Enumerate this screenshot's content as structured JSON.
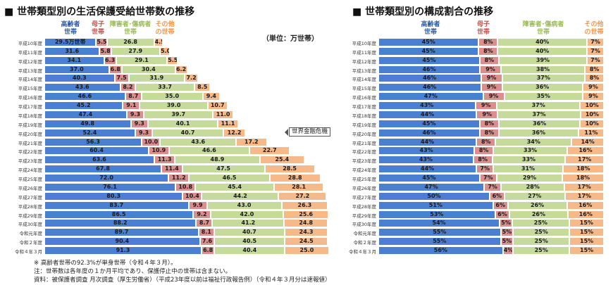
{
  "colors": {
    "elderly": "#4a7fd1",
    "single_mother": "#d98f8d",
    "disabled": "#c6da9c",
    "other": "#f6b98a",
    "elderly_text": "#2d5aa0",
    "mother_text": "#c0504d",
    "disabled_text": "#9bbb59",
    "other_text": "#f79646"
  },
  "chart_data": [
    {
      "type": "bar",
      "orientation": "horizontal",
      "stacked": true,
      "title": "■ 世帯類型別の生活保護受給世帯数の推移",
      "unit_label": "（単位：万世帯）",
      "categories": [
        "平成10年度",
        "平成11年度",
        "平成12年度",
        "平成13年度",
        "平成14年度",
        "平成15年度",
        "平成16年度",
        "平成17年度",
        "平成18年度",
        "平成19年度",
        "平成20年度",
        "平成21年度",
        "平成22年度",
        "平成23年度",
        "平成24年度",
        "平成25年度",
        "平成26年度",
        "平成27年度",
        "平成28年度",
        "平成29年度",
        "平成30年度",
        "令和元年度",
        "令和２年度",
        "令和４年３月"
      ],
      "first_label_suffix": "万世帯",
      "annotation": "世界金融危機",
      "series": [
        {
          "name": "高齢者\n世帯",
          "values": [
            29.5,
            31.6,
            34.1,
            37.0,
            40.3,
            43.6,
            46.6,
            45.2,
            47.4,
            49.8,
            52.4,
            56.3,
            60.4,
            63.6,
            67.8,
            72.0,
            76.1,
            80.3,
            83.7,
            86.5,
            88.2,
            89.7,
            90.4,
            91.3
          ]
        },
        {
          "name": "母子\n世帯",
          "values": [
            5.5,
            5.8,
            6.3,
            6.8,
            7.5,
            8.2,
            8.7,
            9.1,
            9.3,
            9.3,
            9.3,
            10.0,
            10.9,
            11.3,
            11.4,
            11.2,
            10.8,
            10.4,
            9.9,
            9.2,
            8.7,
            8.1,
            7.6,
            6.8
          ]
        },
        {
          "name": "障害者･傷病者\n世帯",
          "values": [
            26.8,
            27.9,
            29.1,
            30.4,
            31.9,
            33.7,
            35.0,
            39.0,
            39.7,
            40.1,
            40.7,
            43.6,
            46.6,
            48.9,
            47.5,
            46.5,
            45.4,
            44.2,
            43.0,
            42.0,
            41.2,
            40.7,
            40.5,
            40.4
          ]
        },
        {
          "name": "その他\nの世帯",
          "values": [
            4.5,
            5.0,
            5.5,
            6.2,
            7.2,
            8.5,
            9.4,
            10.7,
            11.0,
            11.1,
            12.2,
            17.2,
            22.7,
            25.4,
            28.5,
            28.8,
            28.1,
            27.2,
            26.3,
            25.6,
            24.8,
            24.3,
            24.5,
            25.0
          ]
        }
      ]
    },
    {
      "type": "bar",
      "orientation": "horizontal",
      "stacked": true,
      "percent": true,
      "title": "■ 世帯類型別の構成割合の推移",
      "categories": [
        "平成10年度",
        "平成11年度",
        "平成12年度",
        "平成13年度",
        "平成14年度",
        "平成15年度",
        "平成16年度",
        "平成17年度",
        "平成18年度",
        "平成19年度",
        "平成20年度",
        "平成21年度",
        "平成22年度",
        "平成23年度",
        "平成24年度",
        "平成25年度",
        "平成26年度",
        "平成27年度",
        "平成28年度",
        "平成29年度",
        "平成30年度",
        "令和元年度",
        "令和２年度",
        "令和４年３月"
      ],
      "series": [
        {
          "name": "高齢者\n世帯",
          "values": [
            45,
            45,
            45,
            46,
            46,
            46,
            47,
            43,
            44,
            45,
            46,
            44,
            43,
            43,
            44,
            45,
            47,
            50,
            51,
            53,
            54,
            55,
            55,
            56
          ]
        },
        {
          "name": "母子\n世帯",
          "values": [
            8,
            8,
            8,
            9,
            9,
            9,
            9,
            9,
            9,
            8,
            8,
            8,
            8,
            8,
            7,
            7,
            7,
            6,
            6,
            6,
            5,
            5,
            5,
            4
          ]
        },
        {
          "name": "障害者･傷病者\n世帯",
          "values": [
            40,
            40,
            39,
            38,
            37,
            36,
            35,
            37,
            37,
            36,
            36,
            34,
            33,
            33,
            31,
            29,
            28,
            27,
            26,
            26,
            25,
            25,
            25,
            25
          ]
        },
        {
          "name": "その他\nの世帯",
          "values": [
            7,
            7,
            7,
            8,
            8,
            9,
            9,
            10,
            10,
            10,
            11,
            14,
            16,
            17,
            18,
            18,
            17,
            17,
            16,
            16,
            15,
            15,
            15,
            15
          ]
        }
      ]
    }
  ],
  "notes": [
    "※ 高齢者世帯の92.3%が単身世帯（令和４年３月）。",
    "注：世帯数は各年度の１か月平均であり、保護停止中の世帯は含まない。",
    "資料：被保護者調査 月次調査（厚生労働省）（平成23年度以前は福祉行政報告例）（令和４年３月分は速報値）"
  ]
}
